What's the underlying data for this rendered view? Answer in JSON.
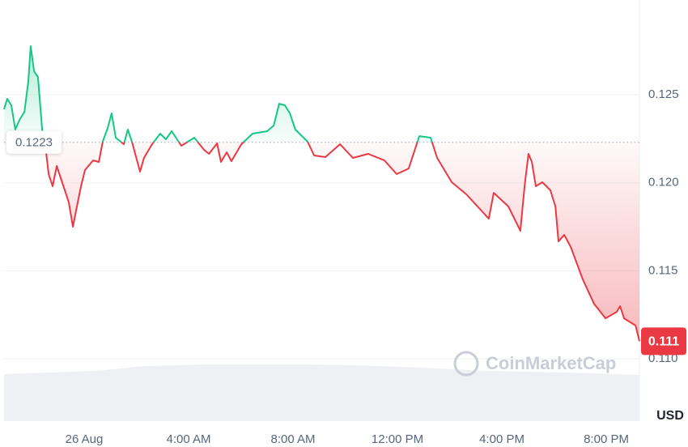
{
  "chart_data": {
    "type": "line",
    "currency": "USD",
    "watermark": "CoinMarketCap",
    "baseline": 0.1223,
    "last_price": 0.111,
    "up_color": "#16c784",
    "down_color": "#ea3943",
    "grid": true,
    "xlim": [
      -3.07,
      21.27
    ],
    "xticks": [
      {
        "value": 0,
        "label": "26 Aug"
      },
      {
        "value": 4,
        "label": "4:00 AM"
      },
      {
        "value": 8,
        "label": "8:00 AM"
      },
      {
        "value": 12,
        "label": "12:00 PM"
      },
      {
        "value": 16,
        "label": "4:00 PM"
      },
      {
        "value": 20,
        "label": "8:00 PM"
      }
    ],
    "ylim": [
      0.1095,
      0.13038
    ],
    "yticks": [
      {
        "value": 0.11,
        "label": "0.110"
      },
      0.115,
      {
        "value": 0.12,
        "label": "0.120"
      },
      0.125
    ],
    "x": [
      -3.07,
      -2.95,
      -2.79,
      -2.64,
      -2.48,
      -2.29,
      -2.14,
      -2.05,
      -1.92,
      -1.77,
      -1.61,
      -1.49,
      -1.36,
      -1.21,
      -1.05,
      -0.74,
      -0.59,
      -0.43,
      -0.28,
      -0.12,
      0.03,
      0.34,
      0.56,
      0.71,
      0.9,
      1.05,
      1.21,
      1.52,
      1.67,
      1.83,
      2.14,
      2.29,
      2.6,
      2.91,
      3.13,
      3.35,
      3.72,
      4.22,
      4.59,
      4.78,
      5.09,
      5.24,
      5.46,
      5.64,
      6.02,
      6.45,
      7.01,
      7.26,
      7.47,
      7.69,
      7.88,
      8.09,
      8.56,
      8.81,
      9.24,
      9.8,
      10.29,
      10.88,
      11.5,
      11.97,
      12.43,
      12.84,
      13.27,
      13.52,
      14.08,
      14.64,
      15.07,
      15.5,
      15.69,
      16.25,
      16.71,
      16.87,
      17.02,
      17.15,
      17.3,
      17.55,
      17.86,
      18.05,
      18.17,
      18.39,
      18.64,
      19.1,
      19.53,
      19.97,
      20.4,
      20.53,
      20.68,
      21.12,
      21.27
    ],
    "values": [
      0.12417,
      0.12477,
      0.1244,
      0.12302,
      0.12357,
      0.12403,
      0.12578,
      0.12776,
      0.12633,
      0.12601,
      0.12302,
      0.1221,
      0.12049,
      0.1198,
      0.12095,
      0.11957,
      0.11888,
      0.1175,
      0.11865,
      0.1198,
      0.12072,
      0.12127,
      0.12118,
      0.12233,
      0.12311,
      0.12394,
      0.12256,
      0.12219,
      0.12302,
      0.12233,
      0.12063,
      0.12141,
      0.12219,
      0.12279,
      0.12247,
      0.12293,
      0.1221,
      0.12256,
      0.12187,
      0.12164,
      0.12224,
      0.12118,
      0.12173,
      0.12123,
      0.12219,
      0.12279,
      0.12293,
      0.12325,
      0.12449,
      0.1244,
      0.12394,
      0.12302,
      0.12233,
      0.12155,
      0.12146,
      0.12219,
      0.12141,
      0.12164,
      0.12127,
      0.12049,
      0.12081,
      0.12265,
      0.12256,
      0.12141,
      0.12003,
      0.11934,
      0.11865,
      0.11796,
      0.11943,
      0.11865,
      0.11727,
      0.1198,
      0.12164,
      0.12118,
      0.1198,
      0.12003,
      0.11957,
      0.11865,
      0.11667,
      0.11704,
      0.11635,
      0.11451,
      0.11313,
      0.1123,
      0.11267,
      0.11299,
      0.1123,
      0.11189,
      0.111
    ]
  }
}
